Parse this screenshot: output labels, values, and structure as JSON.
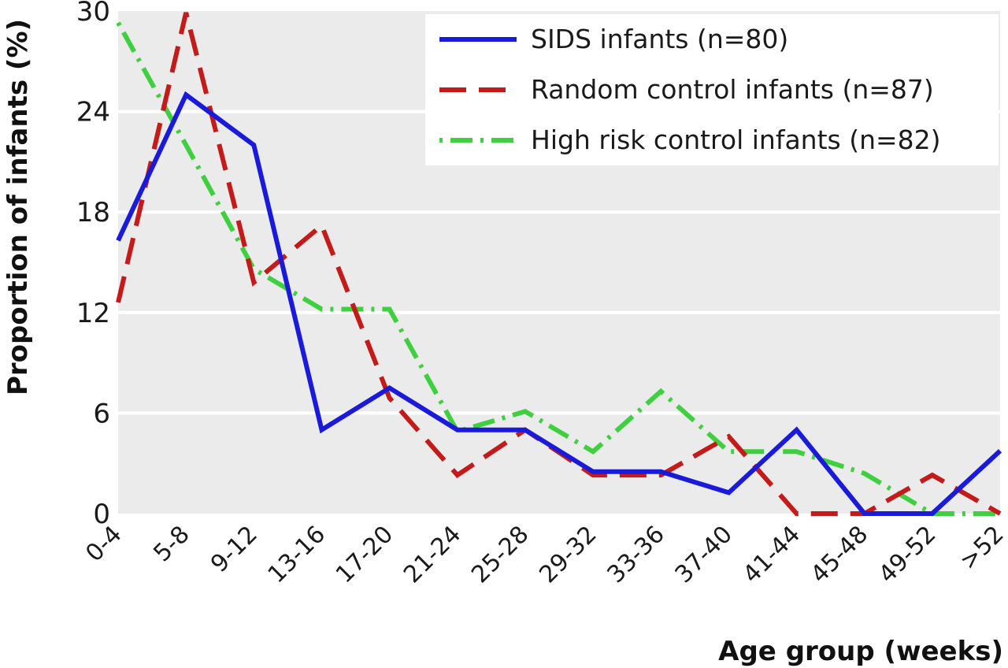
{
  "chart_data": {
    "type": "line",
    "title": "",
    "xlabel": "Age group (weeks)",
    "ylabel": "Proportion of infants (%)",
    "categories": [
      "0-4",
      "5-8",
      "9-12",
      "13-16",
      "17-20",
      "21-24",
      "25-28",
      "29-32",
      "33-36",
      "37-40",
      "41-44",
      "45-48",
      "49-52",
      ">52"
    ],
    "ylim": [
      0,
      30
    ],
    "yticks": [
      0,
      6,
      12,
      18,
      24,
      30
    ],
    "grid": "horizontal",
    "legend_position": "top-right",
    "series": [
      {
        "name": "SIDS infants (n=80)",
        "color": "#1a1adb",
        "dash": "solid",
        "values": [
          16.3,
          25.0,
          22.0,
          5.0,
          7.5,
          5.0,
          5.0,
          2.5,
          2.5,
          1.25,
          5.0,
          0.0,
          0.0,
          3.75
        ]
      },
      {
        "name": "Random control infants (n=87)",
        "color": "#c41a1a",
        "dash": "dashed",
        "values": [
          12.6,
          29.9,
          13.8,
          17.2,
          6.9,
          2.3,
          5.0,
          2.3,
          2.3,
          4.6,
          0.0,
          0.0,
          2.3,
          0.0
        ]
      },
      {
        "name": "High risk control infants (n=82)",
        "color": "#3fd03f",
        "dash": "dotdash",
        "values": [
          29.3,
          22.0,
          14.6,
          12.2,
          12.2,
          4.9,
          6.1,
          3.7,
          7.3,
          3.7,
          3.7,
          2.4,
          0.0,
          0.0
        ]
      }
    ]
  }
}
